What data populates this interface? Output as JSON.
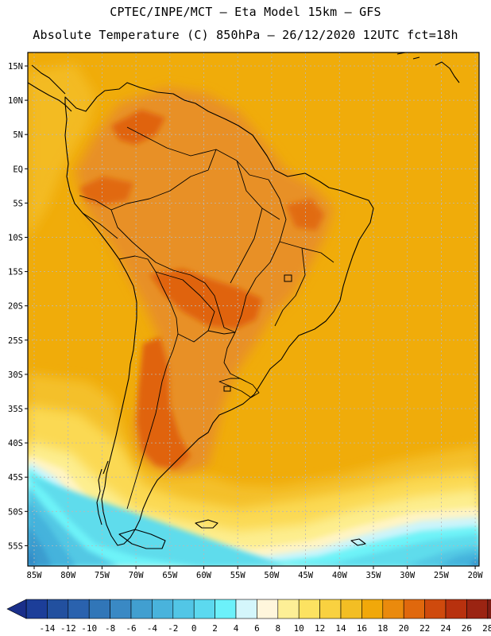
{
  "title": {
    "line1": "CPTEC/INPE/MCT –  Eta Model 15km – GFS",
    "line2": "Absolute Temperature (C) 850hPa – 26/12/2020 12UTC fct=18h"
  },
  "map": {
    "lat_labels": [
      "15N",
      "10N",
      "5N",
      "EQ",
      "5S",
      "10S",
      "15S",
      "20S",
      "25S",
      "30S",
      "35S",
      "40S",
      "45S",
      "50S",
      "55S"
    ],
    "lon_labels": [
      "85W",
      "80W",
      "75W",
      "70W",
      "65W",
      "60W",
      "55W",
      "50W",
      "45W",
      "40W",
      "35W",
      "30W",
      "25W",
      "20W"
    ],
    "palette": {
      "c20": "#e0640e",
      "c18": "#e89026",
      "c16": "#f0ac0a",
      "c14": "#f4c02c",
      "c12": "#fbd953",
      "c10": "#fdee8f",
      "c8": "#fff4c4",
      "c6": "#ccf4fa",
      "c4": "#6ef3f8",
      "c2": "#5fdcec",
      "c0": "#53c8e4",
      "cm2": "#45b3dc",
      "cm4": "#3a9ccf",
      "cm6": "#2e84c4",
      "cm8": "#236bb6",
      "coast": "#000000",
      "grid": "#b8b8b8"
    }
  },
  "colorbar": {
    "labels": [
      "-14",
      "-12",
      "-10",
      "-8",
      "-6",
      "-4",
      "-2",
      "0",
      "2",
      "4",
      "6",
      "8",
      "10",
      "12",
      "14",
      "16",
      "18",
      "20",
      "22",
      "24",
      "26",
      "28"
    ],
    "colors": [
      "#1c3e99",
      "#22509f",
      "#2a62ae",
      "#3176b8",
      "#3a89c4",
      "#419fd0",
      "#49b3dc",
      "#52c6e6",
      "#5cd9ef",
      "#6cf1fa",
      "#d4f6fb",
      "#fff6dc",
      "#fdef96",
      "#fce261",
      "#f9d140",
      "#f3be24",
      "#f1a80a",
      "#ea8a0d",
      "#e0680d",
      "#cf4a0d",
      "#b8310e",
      "#9b2412",
      "#7f1d14"
    ],
    "min_arrow_color": "#1a2f8a",
    "max_arrow_color": "#7d0b28"
  }
}
